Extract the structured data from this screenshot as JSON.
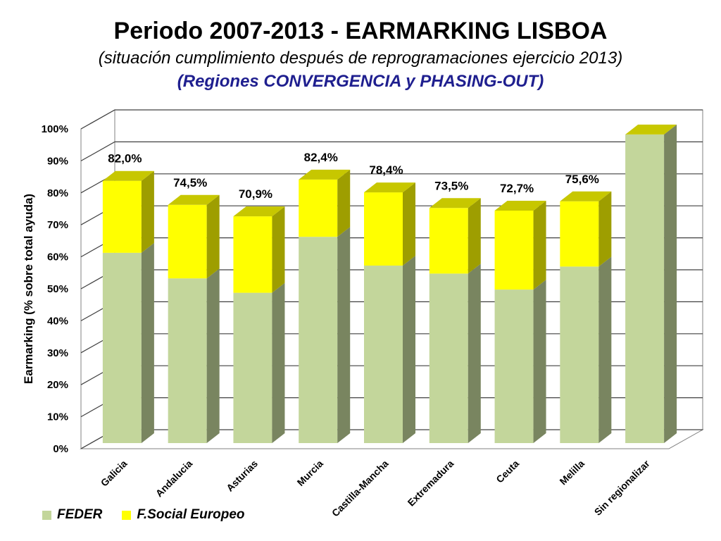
{
  "header": {
    "title": "Periodo 2007-2013 - EARMARKING LISBOA",
    "subtitle": "(situación cumplimiento después de reprogramaciones ejercicio 2013)",
    "subtitle2": "(Regiones CONVERGENCIA y PHASING-OUT)"
  },
  "chart_data": {
    "type": "bar",
    "stacked": true,
    "three_d": true,
    "title": "Periodo 2007-2013 - EARMARKING LISBOA",
    "ylabel": "Earmarking (% sobre total ayuda)",
    "xlabel": "",
    "ylim": [
      0,
      100
    ],
    "yticks": [
      "0%",
      "10%",
      "20%",
      "30%",
      "40%",
      "50%",
      "60%",
      "70%",
      "80%",
      "90%",
      "100%"
    ],
    "grid": true,
    "legend_position": "bottom-left",
    "categories": [
      "Galicia",
      "Andalucia",
      "Asturias",
      "Murcia",
      "Castilla-Mancha",
      "Extremadura",
      "Ceuta",
      "Melilla",
      "Sin regionalizar"
    ],
    "series": [
      {
        "name": "FEDER",
        "color": "#c3d69b",
        "values": [
          59.5,
          51.5,
          47.0,
          64.5,
          55.5,
          53.0,
          48.0,
          55.2,
          96.5
        ]
      },
      {
        "name": "F.Social Europeo",
        "color": "#ffff00",
        "values": [
          22.5,
          23.0,
          23.9,
          17.9,
          22.9,
          20.5,
          24.7,
          20.4,
          0
        ]
      }
    ],
    "total_labels": [
      "82,0%",
      "74,5%",
      "70,9%",
      "82,4%",
      "78,4%",
      "73,5%",
      "72,7%",
      "75,6%",
      ""
    ]
  }
}
